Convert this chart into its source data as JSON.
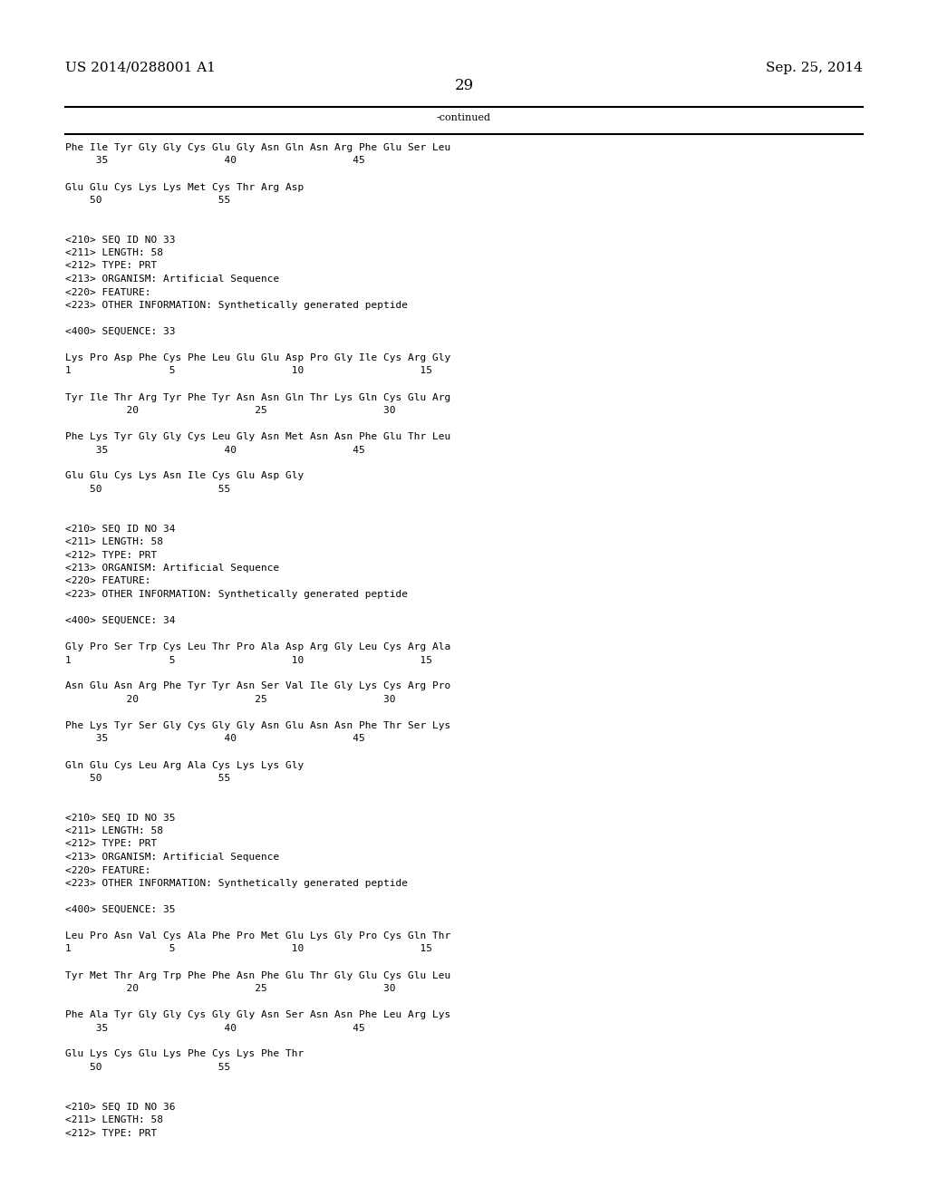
{
  "page_left": "US 2014/0288001 A1",
  "page_right": "Sep. 25, 2014",
  "page_number": "29",
  "continued": "-continued",
  "background_color": "#ffffff",
  "text_color": "#000000",
  "header_font_size": 11,
  "page_num_font_size": 12,
  "body_font_size": 8.0,
  "lines": [
    "Phe Ile Tyr Gly Gly Cys Glu Gly Asn Gln Asn Arg Phe Glu Ser Leu",
    "     35                   40                   45",
    "",
    "Glu Glu Cys Lys Lys Met Cys Thr Arg Asp",
    "    50                   55",
    "",
    "",
    "<210> SEQ ID NO 33",
    "<211> LENGTH: 58",
    "<212> TYPE: PRT",
    "<213> ORGANISM: Artificial Sequence",
    "<220> FEATURE:",
    "<223> OTHER INFORMATION: Synthetically generated peptide",
    "",
    "<400> SEQUENCE: 33",
    "",
    "Lys Pro Asp Phe Cys Phe Leu Glu Glu Asp Pro Gly Ile Cys Arg Gly",
    "1                5                   10                   15",
    "",
    "Tyr Ile Thr Arg Tyr Phe Tyr Asn Asn Gln Thr Lys Gln Cys Glu Arg",
    "          20                   25                   30",
    "",
    "Phe Lys Tyr Gly Gly Cys Leu Gly Asn Met Asn Asn Phe Glu Thr Leu",
    "     35                   40                   45",
    "",
    "Glu Glu Cys Lys Asn Ile Cys Glu Asp Gly",
    "    50                   55",
    "",
    "",
    "<210> SEQ ID NO 34",
    "<211> LENGTH: 58",
    "<212> TYPE: PRT",
    "<213> ORGANISM: Artificial Sequence",
    "<220> FEATURE:",
    "<223> OTHER INFORMATION: Synthetically generated peptide",
    "",
    "<400> SEQUENCE: 34",
    "",
    "Gly Pro Ser Trp Cys Leu Thr Pro Ala Asp Arg Gly Leu Cys Arg Ala",
    "1                5                   10                   15",
    "",
    "Asn Glu Asn Arg Phe Tyr Tyr Asn Ser Val Ile Gly Lys Cys Arg Pro",
    "          20                   25                   30",
    "",
    "Phe Lys Tyr Ser Gly Cys Gly Gly Asn Glu Asn Asn Phe Thr Ser Lys",
    "     35                   40                   45",
    "",
    "Gln Glu Cys Leu Arg Ala Cys Lys Lys Gly",
    "    50                   55",
    "",
    "",
    "<210> SEQ ID NO 35",
    "<211> LENGTH: 58",
    "<212> TYPE: PRT",
    "<213> ORGANISM: Artificial Sequence",
    "<220> FEATURE:",
    "<223> OTHER INFORMATION: Synthetically generated peptide",
    "",
    "<400> SEQUENCE: 35",
    "",
    "Leu Pro Asn Val Cys Ala Phe Pro Met Glu Lys Gly Pro Cys Gln Thr",
    "1                5                   10                   15",
    "",
    "Tyr Met Thr Arg Trp Phe Phe Asn Phe Glu Thr Gly Glu Cys Glu Leu",
    "          20                   25                   30",
    "",
    "Phe Ala Tyr Gly Gly Cys Gly Gly Asn Ser Asn Asn Phe Leu Arg Lys",
    "     35                   40                   45",
    "",
    "Glu Lys Cys Glu Lys Phe Cys Lys Phe Thr",
    "    50                   55",
    "",
    "",
    "<210> SEQ ID NO 36",
    "<211> LENGTH: 58",
    "<212> TYPE: PRT"
  ]
}
